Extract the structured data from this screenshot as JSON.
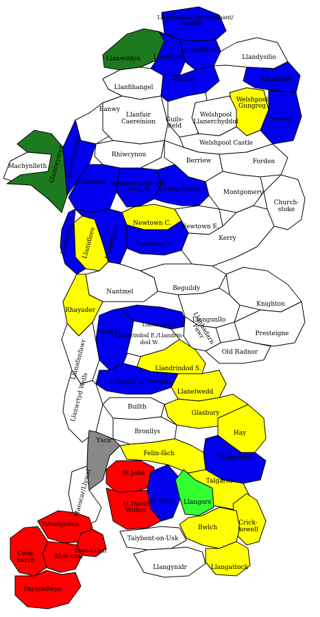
{
  "colors": {
    "blue": "#0000ee",
    "yellow": "#ffff00",
    "green": "#1e7a1e",
    "lightgreen": "#33ff33",
    "red": "#ff0000",
    "grey": "#888888",
    "white": "#ffffff"
  },
  "wards": [
    {
      "id": "llanfihangel-yng-ngwynfa",
      "label": "Llanrhaeadr-ym-Mochnant/ Llansilin",
      "color": "blue"
    },
    {
      "id": "llanwddyn",
      "label": "Llanwddyn",
      "color": "green"
    },
    {
      "id": "llanfyllin",
      "label": "Llanfyllin",
      "color": "blue"
    },
    {
      "id": "llansantffraid",
      "label": "Llansantffraid",
      "color": "blue"
    },
    {
      "id": "llandysilio",
      "label": "Llandysilio",
      "color": "white"
    },
    {
      "id": "llanfihangel",
      "label": "Llanfihangel",
      "color": "white"
    },
    {
      "id": "meifod",
      "label": "Meifod",
      "color": "blue"
    },
    {
      "id": "llandrinio",
      "label": "Llandrinio",
      "color": "blue"
    },
    {
      "id": "welshpool-gungrog",
      "label": "Welshpool Gungrog",
      "color": "yellow"
    },
    {
      "id": "trewern",
      "label": "Trewern",
      "color": "blue"
    },
    {
      "id": "banwy",
      "label": "Banwy",
      "color": "white"
    },
    {
      "id": "guilsfield",
      "label": "Guils- field",
      "color": "white"
    },
    {
      "id": "welshpool-llanerchyddol",
      "label": "Welshpool Llanerchyddol",
      "color": "white"
    },
    {
      "id": "llanfair-caereinion",
      "label": "Llanfair Caereinion",
      "color": "white"
    },
    {
      "id": "welshpool-castle",
      "label": "Welshpool Castle",
      "color": "white"
    },
    {
      "id": "machynlleth",
      "label": "Machynlleth",
      "color": "white"
    },
    {
      "id": "glantwymyn",
      "label": "Glantwymyn",
      "color": "green"
    },
    {
      "id": "llanbrynmair",
      "label": "Llanbrynmair",
      "color": "blue"
    },
    {
      "id": "rhiwcynon",
      "label": "Rhiwcynon",
      "color": "white"
    },
    {
      "id": "berriew",
      "label": "Berriew",
      "color": "white"
    },
    {
      "id": "forden",
      "label": "Forden",
      "color": "white"
    },
    {
      "id": "caersws",
      "label": "Caersws",
      "color": "blue"
    },
    {
      "id": "newtown-llanllwchaiarn-w",
      "label": "Newtown Llanllwch- aiarn W.",
      "color": "blue"
    },
    {
      "id": "llanllwchaiarn-e",
      "label": "Llanllwchaiarn E.",
      "color": "blue"
    },
    {
      "id": "newtown-central",
      "label": "Newtown C.",
      "color": "yellow"
    },
    {
      "id": "montgomery",
      "label": "Montgomery",
      "color": "white"
    },
    {
      "id": "churchstoke",
      "label": "Church- stoke",
      "color": "white"
    },
    {
      "id": "llandinam",
      "label": "Llandinam",
      "color": "blue"
    },
    {
      "id": "newtown-east",
      "label": "Newtown E.",
      "color": "white"
    },
    {
      "id": "llanidloes",
      "label": "Llanidloes",
      "color": "yellow"
    },
    {
      "id": "newtown-south",
      "label": "Newtown S.",
      "color": "blue"
    },
    {
      "id": "llangurig",
      "label": "Llangurig",
      "color": "blue"
    },
    {
      "id": "kerry",
      "label": "Kerry",
      "color": "white"
    },
    {
      "id": "nantmel",
      "label": "Nantmel",
      "color": "white"
    },
    {
      "id": "beguildy",
      "label": "Beguildy",
      "color": "white"
    },
    {
      "id": "knighton",
      "label": "Knighton",
      "color": "white"
    },
    {
      "id": "rhayader",
      "label": "Rhayader",
      "color": "yellow"
    },
    {
      "id": "llangunllo",
      "label": "Llangunllo",
      "color": "white"
    },
    {
      "id": "llandrindod-north",
      "label": "Llandrindod N.",
      "color": "blue"
    },
    {
      "id": "llanbadarn-fawr",
      "label": "Llanbadarn Fawr",
      "color": "white"
    },
    {
      "id": "presteigne",
      "label": "Presteigne",
      "color": "white"
    },
    {
      "id": "llanyre",
      "label": "Llanyre",
      "color": "blue"
    },
    {
      "id": "llandrindod-east-west",
      "label": "Llandrindod E./Llandrin- dod W.",
      "color": "white"
    },
    {
      "id": "old-radnor",
      "label": "Old Radnor",
      "color": "white"
    },
    {
      "id": "llanafanfawr",
      "label": "Llanafanfawr",
      "color": "white"
    },
    {
      "id": "llandrindod-south",
      "label": "Llandrindod S.",
      "color": "yellow"
    },
    {
      "id": "disserth-and-trecoed",
      "label": "Disserth & Trecoed",
      "color": "blue"
    },
    {
      "id": "llanelwedd",
      "label": "Llanelwedd",
      "color": "yellow"
    },
    {
      "id": "llanwrtyd-wells",
      "label": "Llanwrtyd Wells",
      "color": "white"
    },
    {
      "id": "builth",
      "label": "Builth",
      "color": "white"
    },
    {
      "id": "glasbury",
      "label": "Glasbury",
      "color": "yellow"
    },
    {
      "id": "bronllys",
      "label": "Bronllys",
      "color": "white"
    },
    {
      "id": "hay",
      "label": "Hay",
      "color": "yellow"
    },
    {
      "id": "yscir",
      "label": "Yscir",
      "color": "grey"
    },
    {
      "id": "gwernyfed",
      "label": "Gwernyfed",
      "color": "blue"
    },
    {
      "id": "felin-fach",
      "label": "Felin-fâch",
      "color": "yellow"
    },
    {
      "id": "st-john",
      "label": "St John",
      "color": "red"
    },
    {
      "id": "talgarth",
      "label": "Talgarth",
      "color": "yellow"
    },
    {
      "id": "st-mary",
      "label": "St Mary",
      "color": "blue"
    },
    {
      "id": "llangors",
      "label": "Llangors",
      "color": "lightgreen"
    },
    {
      "id": "maescar-llywel",
      "label": "Maescar/Llywel",
      "color": "white"
    },
    {
      "id": "st-david-within",
      "label": "St David Within",
      "color": "red"
    },
    {
      "id": "crickhowell",
      "label": "Crick- howell",
      "color": "yellow"
    },
    {
      "id": "bwlch",
      "label": "Bwlch",
      "color": "yellow"
    },
    {
      "id": "ystradgynlais",
      "label": "Ystradgynlais",
      "color": "red"
    },
    {
      "id": "talybont-on-usk",
      "label": "Talybont-on-Usk",
      "color": "white"
    },
    {
      "id": "tawe-uchaf",
      "label": "Tawe-Uchaf",
      "color": "red"
    },
    {
      "id": "aber-craf",
      "label": "Aber-craf",
      "color": "red"
    },
    {
      "id": "cwm-twrch",
      "label": "Cwm- twrch",
      "color": "red"
    },
    {
      "id": "llangattock",
      "label": "Llangattock",
      "color": "yellow"
    },
    {
      "id": "llangynidr",
      "label": "Llangynidr",
      "color": "white"
    },
    {
      "id": "ynyscedwyn",
      "label": "Ynyscedwyn",
      "color": "red"
    }
  ]
}
